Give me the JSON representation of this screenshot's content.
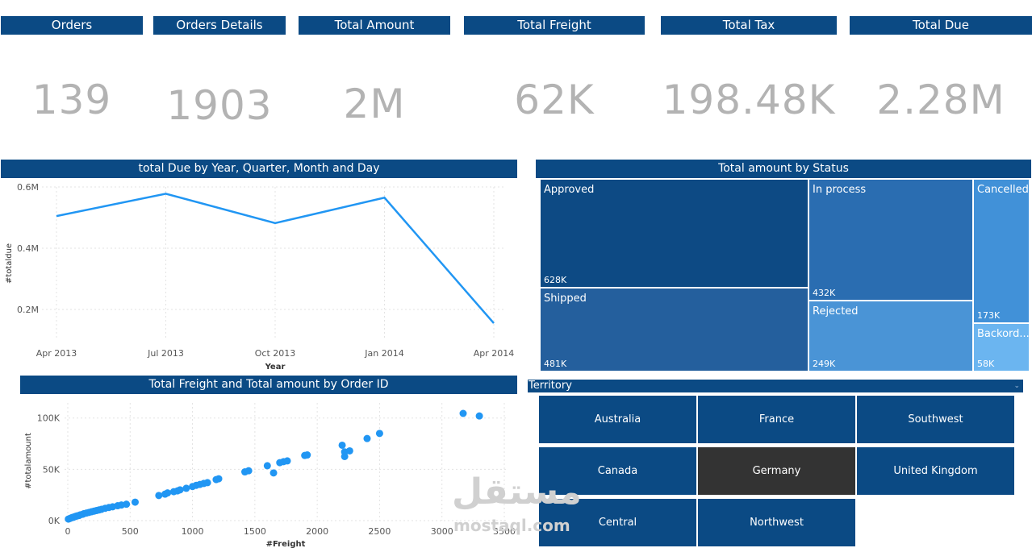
{
  "kpis": [
    {
      "label": "Orders",
      "value": "139"
    },
    {
      "label": "Orders Details",
      "value": "1903"
    },
    {
      "label": "Total Amount",
      "value": "2M"
    },
    {
      "label": "Total Freight",
      "value": "62K"
    },
    {
      "label": "Total Tax",
      "value": "198.48K"
    },
    {
      "label": "Total Due",
      "value": "2.28M"
    }
  ],
  "line_panel": {
    "title": "total Due by Year, Quarter, Month and Day"
  },
  "treemap_panel": {
    "title": "Total amount by Status",
    "tiles": [
      {
        "label": "Approved",
        "value": "628K",
        "color": "#0d4a84"
      },
      {
        "label": "In process",
        "value": "432K",
        "color": "#2a6db1"
      },
      {
        "label": "Cancelled",
        "value": "173K",
        "color": "#4191d8"
      },
      {
        "label": "Shipped",
        "value": "481K",
        "color": "#245f9d"
      },
      {
        "label": "Rejected",
        "value": "249K",
        "color": "#4a94d6"
      },
      {
        "label": "Backord...",
        "value": "58K",
        "color": "#6bb5f0"
      }
    ]
  },
  "scatter_panel": {
    "title": "Total Freight and Total amount by Order ID"
  },
  "territory": {
    "label": "Territory",
    "items": [
      "Australia",
      "France",
      "Southwest",
      "Canada",
      "Germany",
      "United Kingdom",
      "Central",
      "Northwest"
    ],
    "selected": "Germany"
  },
  "watermark": {
    "arabic": "مستقل",
    "latin": "mostaql.com"
  },
  "chart_data": [
    {
      "type": "line",
      "title": "total Due by Year, Quarter, Month and Day",
      "xlabel": "Year",
      "ylabel": "#totaldue",
      "categories": [
        "Apr 2013",
        "Jul 2013",
        "Oct 2013",
        "Jan 2014",
        "Apr 2014"
      ],
      "values": [
        505000,
        578000,
        482000,
        565000,
        155000
      ],
      "y_ticks": [
        "0.2M",
        "0.4M",
        "0.6M"
      ],
      "ylim": [
        100000,
        600000
      ],
      "color": "#2196f3",
      "grid": true
    },
    {
      "type": "scatter",
      "title": "Total Freight and Total amount by Order ID",
      "xlabel": "#Freight",
      "ylabel": "#totalamount",
      "xlim": [
        0,
        3500
      ],
      "ylim": [
        0,
        110000
      ],
      "x_ticks": [
        0,
        500,
        1000,
        1500,
        2000,
        2500,
        3000,
        3500
      ],
      "y_ticks": [
        "0K",
        "50K",
        "100K"
      ],
      "color": "#2196f3",
      "grid": true,
      "points": [
        [
          5,
          1500
        ],
        [
          15,
          2000
        ],
        [
          25,
          2500
        ],
        [
          35,
          3000
        ],
        [
          45,
          3200
        ],
        [
          55,
          3800
        ],
        [
          65,
          4200
        ],
        [
          75,
          4600
        ],
        [
          90,
          5000
        ],
        [
          100,
          5600
        ],
        [
          120,
          6200
        ],
        [
          130,
          6800
        ],
        [
          150,
          7400
        ],
        [
          170,
          8000
        ],
        [
          190,
          8600
        ],
        [
          210,
          9200
        ],
        [
          230,
          9800
        ],
        [
          250,
          10400
        ],
        [
          270,
          11000
        ],
        [
          300,
          12000
        ],
        [
          330,
          12800
        ],
        [
          360,
          13500
        ],
        [
          400,
          14500
        ],
        [
          430,
          15200
        ],
        [
          470,
          16000
        ],
        [
          540,
          18000
        ],
        [
          730,
          24500
        ],
        [
          780,
          25800
        ],
        [
          800,
          27000
        ],
        [
          850,
          28200
        ],
        [
          880,
          29000
        ],
        [
          900,
          30000
        ],
        [
          950,
          31500
        ],
        [
          1000,
          33200
        ],
        [
          1030,
          34400
        ],
        [
          1060,
          35300
        ],
        [
          1090,
          36200
        ],
        [
          1120,
          37000
        ],
        [
          1190,
          40000
        ],
        [
          1210,
          40800
        ],
        [
          1420,
          47500
        ],
        [
          1450,
          48600
        ],
        [
          1600,
          53500
        ],
        [
          1650,
          46500
        ],
        [
          1700,
          56500
        ],
        [
          1730,
          57500
        ],
        [
          1760,
          58200
        ],
        [
          1900,
          63500
        ],
        [
          1920,
          64000
        ],
        [
          2200,
          73500
        ],
        [
          2220,
          62500
        ],
        [
          2220,
          67000
        ],
        [
          2260,
          68000
        ],
        [
          2400,
          80000
        ],
        [
          2500,
          85000
        ],
        [
          3170,
          104500
        ],
        [
          3300,
          102000
        ]
      ]
    }
  ]
}
